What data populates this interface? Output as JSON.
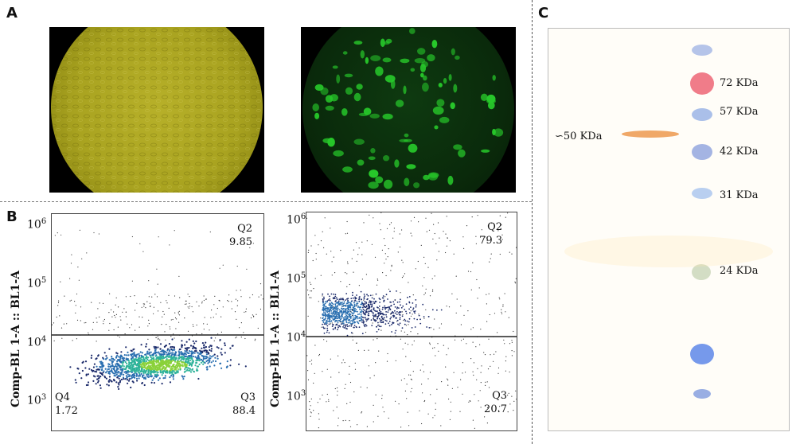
{
  "panels": {
    "a": "A",
    "b": "B",
    "c": "C"
  },
  "panel_a": {
    "left_image": {
      "color": "#b0aa22"
    },
    "right_image": {
      "color": "#27c82a"
    }
  },
  "panel_b": {
    "y_axis_label": "Comp-BL 1-A :: BL1-A",
    "y_ticks": [
      {
        "base": "10",
        "exp": "6"
      },
      {
        "base": "10",
        "exp": "5"
      },
      {
        "base": "10",
        "exp": "4"
      },
      {
        "base": "10",
        "exp": "3"
      }
    ],
    "left_plot": {
      "q2": {
        "label": "Q2",
        "value": "9.85"
      },
      "q3": {
        "label": "Q3",
        "value": "88.4"
      },
      "q4": {
        "label": "Q4",
        "value": "1.72"
      }
    },
    "right_plot": {
      "q2": {
        "label": "Q2",
        "value": "79.3"
      },
      "q3": {
        "label": "Q3",
        "value": "20.7"
      }
    }
  },
  "panel_c": {
    "band_label": "∽50 KDa",
    "markers": [
      "72 KDa",
      "57 KDa",
      "42 KDa",
      "31 KDa",
      "24 KDa"
    ],
    "band_color": "#f0a868"
  }
}
